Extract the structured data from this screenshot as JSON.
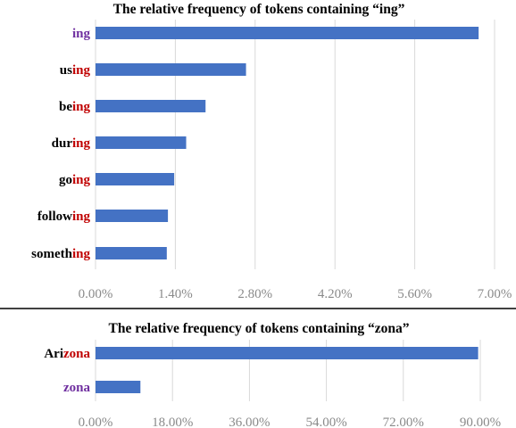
{
  "colors": {
    "bar": "#4472C4",
    "grid": "#d9d9d9",
    "divider": "#000000",
    "label_base": "#000000",
    "highlight_suffix": "#c00000",
    "highlight_token": "#7030a0",
    "tick_text": "#8a8a8a"
  },
  "chart_data": [
    {
      "type": "bar",
      "orientation": "horizontal",
      "title": "The relative frequency of tokens containing “ing”",
      "highlight": "ing",
      "categories": [
        "ing",
        "using",
        "being",
        "during",
        "going",
        "following",
        "something"
      ],
      "values": [
        6.72,
        2.64,
        1.93,
        1.59,
        1.38,
        1.27,
        1.25
      ],
      "unit": "%",
      "xlim": [
        0,
        7.0
      ],
      "ticks": [
        "0.00%",
        "1.40%",
        "2.80%",
        "4.20%",
        "5.60%",
        "7.00%"
      ],
      "tick_values": [
        0,
        1.4,
        2.8,
        4.2,
        5.6,
        7.0
      ],
      "grid": true,
      "xlabel": "",
      "ylabel": ""
    },
    {
      "type": "bar",
      "orientation": "horizontal",
      "title": "The relative frequency of tokens containing “zona”",
      "highlight": "zona",
      "categories": [
        "Arizona",
        "zona"
      ],
      "values": [
        89.5,
        10.5
      ],
      "unit": "%",
      "xlim": [
        0,
        90.0
      ],
      "ticks": [
        "0.00%",
        "18.00%",
        "36.00%",
        "54.00%",
        "72.00%",
        "90.00%"
      ],
      "tick_values": [
        0,
        18,
        36,
        54,
        72,
        90
      ],
      "grid": true,
      "xlabel": "",
      "ylabel": ""
    }
  ]
}
